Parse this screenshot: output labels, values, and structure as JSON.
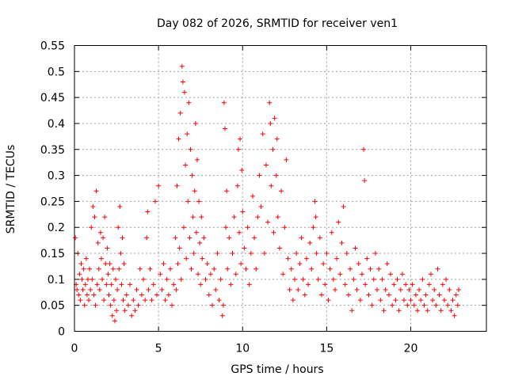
{
  "chart_data": {
    "type": "scatter",
    "title": "Day 082 of 2026, SRMTID for receiver ven1",
    "xlabel": "GPS time / hours",
    "ylabel": "SRMTID / TECUs",
    "xlim": [
      0,
      24.5
    ],
    "ylim": [
      0,
      0.55
    ],
    "xticks": [
      0,
      5,
      10,
      15,
      20
    ],
    "yticks": [
      0,
      0.05,
      0.1,
      0.15,
      0.2,
      0.25,
      0.3,
      0.35,
      0.4,
      0.45,
      0.5,
      0.55
    ],
    "xtick_labels": [
      "0",
      "5",
      "10",
      "15",
      "20"
    ],
    "ytick_labels": [
      "0",
      "0.05",
      "0.1",
      "0.15",
      "0.2",
      "0.25",
      "0.3",
      "0.35",
      "0.4",
      "0.45",
      "0.5",
      "0.55"
    ],
    "grid": true,
    "marker": "+",
    "color": "#ff0000",
    "series": [
      {
        "name": "SRMTID",
        "points": [
          [
            0.05,
            0.18
          ],
          [
            0.1,
            0.09
          ],
          [
            0.15,
            0.08
          ],
          [
            0.2,
            0.15
          ],
          [
            0.25,
            0.07
          ],
          [
            0.3,
            0.11
          ],
          [
            0.35,
            0.06
          ],
          [
            0.4,
            0.13
          ],
          [
            0.45,
            0.1
          ],
          [
            0.5,
            0.08
          ],
          [
            0.55,
            0.12
          ],
          [
            0.6,
            0.05
          ],
          [
            0.65,
            0.09
          ],
          [
            0.7,
            0.14
          ],
          [
            0.75,
            0.07
          ],
          [
            0.8,
            0.1
          ],
          [
            0.85,
            0.06
          ],
          [
            0.9,
            0.12
          ],
          [
            0.95,
            0.08
          ],
          [
            1.0,
            0.2
          ],
          [
            1.05,
            0.1
          ],
          [
            1.1,
            0.24
          ],
          [
            1.15,
            0.07
          ],
          [
            1.2,
            0.22
          ],
          [
            1.25,
            0.05
          ],
          [
            1.3,
            0.27
          ],
          [
            1.35,
            0.09
          ],
          [
            1.4,
            0.17
          ],
          [
            1.45,
            0.12
          ],
          [
            1.5,
            0.08
          ],
          [
            1.55,
            0.19
          ],
          [
            1.6,
            0.14
          ],
          [
            1.65,
            0.1
          ],
          [
            1.7,
            0.18
          ],
          [
            1.75,
            0.06
          ],
          [
            1.8,
            0.22
          ],
          [
            1.85,
            0.13
          ],
          [
            1.9,
            0.09
          ],
          [
            1.95,
            0.16
          ],
          [
            2.0,
            0.11
          ],
          [
            2.05,
            0.07
          ],
          [
            2.1,
            0.13
          ],
          [
            2.15,
            0.05
          ],
          [
            2.2,
            0.09
          ],
          [
            2.25,
            0.03
          ],
          [
            2.3,
            0.12
          ],
          [
            2.35,
            0.06
          ],
          [
            2.4,
            0.02
          ],
          [
            2.45,
            0.1
          ],
          [
            2.5,
            0.04
          ],
          [
            2.55,
            0.08
          ],
          [
            2.6,
            0.2
          ],
          [
            2.65,
            0.12
          ],
          [
            2.7,
            0.24
          ],
          [
            2.75,
            0.15
          ],
          [
            2.8,
            0.09
          ],
          [
            2.85,
            0.18
          ],
          [
            2.9,
            0.06
          ],
          [
            2.95,
            0.13
          ],
          [
            3.0,
            0.04
          ],
          [
            3.1,
            0.07
          ],
          [
            3.2,
            0.05
          ],
          [
            3.3,
            0.09
          ],
          [
            3.4,
            0.03
          ],
          [
            3.5,
            0.06
          ],
          [
            3.6,
            0.04
          ],
          [
            3.7,
            0.08
          ],
          [
            3.8,
            0.05
          ],
          [
            3.9,
            0.12
          ],
          [
            4.0,
            0.07
          ],
          [
            4.1,
            0.1
          ],
          [
            4.2,
            0.06
          ],
          [
            4.3,
            0.18
          ],
          [
            4.35,
            0.23
          ],
          [
            4.4,
            0.08
          ],
          [
            4.5,
            0.12
          ],
          [
            4.6,
            0.06
          ],
          [
            4.7,
            0.09
          ],
          [
            4.8,
            0.25
          ],
          [
            4.9,
            0.07
          ],
          [
            5.0,
            0.28
          ],
          [
            5.1,
            0.11
          ],
          [
            5.2,
            0.08
          ],
          [
            5.3,
            0.13
          ],
          [
            5.4,
            0.06
          ],
          [
            5.5,
            0.1
          ],
          [
            5.6,
            0.07
          ],
          [
            5.7,
            0.12
          ],
          [
            5.8,
            0.05
          ],
          [
            5.9,
            0.09
          ],
          [
            6.0,
            0.18
          ],
          [
            6.05,
            0.08
          ],
          [
            6.1,
            0.28
          ],
          [
            6.15,
            0.13
          ],
          [
            6.2,
            0.37
          ],
          [
            6.25,
            0.16
          ],
          [
            6.3,
            0.42
          ],
          [
            6.35,
            0.1
          ],
          [
            6.4,
            0.51
          ],
          [
            6.45,
            0.48
          ],
          [
            6.5,
            0.2
          ],
          [
            6.55,
            0.46
          ],
          [
            6.6,
            0.32
          ],
          [
            6.65,
            0.14
          ],
          [
            6.7,
            0.38
          ],
          [
            6.75,
            0.25
          ],
          [
            6.8,
            0.44
          ],
          [
            6.85,
            0.18
          ],
          [
            6.9,
            0.35
          ],
          [
            6.95,
            0.12
          ],
          [
            7.0,
            0.3
          ],
          [
            7.05,
            0.22
          ],
          [
            7.1,
            0.15
          ],
          [
            7.15,
            0.27
          ],
          [
            7.2,
            0.4
          ],
          [
            7.25,
            0.19
          ],
          [
            7.3,
            0.33
          ],
          [
            7.35,
            0.11
          ],
          [
            7.4,
            0.25
          ],
          [
            7.45,
            0.17
          ],
          [
            7.5,
            0.09
          ],
          [
            7.55,
            0.22
          ],
          [
            7.6,
            0.14
          ],
          [
            7.7,
            0.18
          ],
          [
            7.8,
            0.1
          ],
          [
            7.9,
            0.13
          ],
          [
            8.0,
            0.07
          ],
          [
            8.1,
            0.11
          ],
          [
            8.2,
            0.05
          ],
          [
            8.3,
            0.12
          ],
          [
            8.4,
            0.08
          ],
          [
            8.5,
            0.15
          ],
          [
            8.6,
            0.06
          ],
          [
            8.7,
            0.1
          ],
          [
            8.8,
            0.03
          ],
          [
            8.85,
            0.05
          ],
          [
            8.9,
            0.44
          ],
          [
            8.95,
            0.39
          ],
          [
            9.0,
            0.2
          ],
          [
            9.05,
            0.27
          ],
          [
            9.1,
            0.12
          ],
          [
            9.2,
            0.18
          ],
          [
            9.3,
            0.09
          ],
          [
            9.4,
            0.15
          ],
          [
            9.5,
            0.22
          ],
          [
            9.6,
            0.11
          ],
          [
            9.7,
            0.28
          ],
          [
            9.75,
            0.35
          ],
          [
            9.8,
            0.19
          ],
          [
            9.85,
            0.37
          ],
          [
            9.9,
            0.13
          ],
          [
            9.95,
            0.31
          ],
          [
            10.0,
            0.23
          ],
          [
            10.1,
            0.16
          ],
          [
            10.2,
            0.12
          ],
          [
            10.3,
            0.2
          ],
          [
            10.4,
            0.09
          ],
          [
            10.5,
            0.15
          ],
          [
            10.6,
            0.26
          ],
          [
            10.7,
            0.18
          ],
          [
            10.8,
            0.12
          ],
          [
            10.9,
            0.22
          ],
          [
            11.0,
            0.3
          ],
          [
            11.1,
            0.24
          ],
          [
            11.2,
            0.38
          ],
          [
            11.3,
            0.15
          ],
          [
            11.4,
            0.32
          ],
          [
            11.5,
            0.21
          ],
          [
            11.6,
            0.44
          ],
          [
            11.65,
            0.4
          ],
          [
            11.7,
            0.28
          ],
          [
            11.8,
            0.35
          ],
          [
            11.85,
            0.19
          ],
          [
            11.9,
            0.41
          ],
          [
            12.0,
            0.3
          ],
          [
            12.05,
            0.37
          ],
          [
            12.1,
            0.22
          ],
          [
            12.2,
            0.16
          ],
          [
            12.3,
            0.27
          ],
          [
            12.4,
            0.11
          ],
          [
            12.5,
            0.2
          ],
          [
            12.6,
            0.33
          ],
          [
            12.7,
            0.14
          ],
          [
            12.8,
            0.08
          ],
          [
            12.9,
            0.12
          ],
          [
            13.0,
            0.06
          ],
          [
            13.1,
            0.1
          ],
          [
            13.2,
            0.15
          ],
          [
            13.3,
            0.08
          ],
          [
            13.4,
            0.13
          ],
          [
            13.5,
            0.18
          ],
          [
            13.6,
            0.1
          ],
          [
            13.7,
            0.07
          ],
          [
            13.8,
            0.14
          ],
          [
            13.9,
            0.09
          ],
          [
            14.0,
            0.17
          ],
          [
            14.1,
            0.12
          ],
          [
            14.2,
            0.2
          ],
          [
            14.3,
            0.25
          ],
          [
            14.35,
            0.22
          ],
          [
            14.4,
            0.15
          ],
          [
            14.5,
            0.1
          ],
          [
            14.6,
            0.18
          ],
          [
            14.7,
            0.07
          ],
          [
            14.8,
            0.13
          ],
          [
            14.9,
            0.09
          ],
          [
            15.0,
            0.15
          ],
          [
            15.1,
            0.06
          ],
          [
            15.2,
            0.12
          ],
          [
            15.3,
            0.19
          ],
          [
            15.4,
            0.1
          ],
          [
            15.5,
            0.08
          ],
          [
            15.6,
            0.14
          ],
          [
            15.7,
            0.21
          ],
          [
            15.8,
            0.11
          ],
          [
            15.9,
            0.17
          ],
          [
            16.0,
            0.24
          ],
          [
            16.1,
            0.09
          ],
          [
            16.2,
            0.15
          ],
          [
            16.3,
            0.07
          ],
          [
            16.4,
            0.12
          ],
          [
            16.5,
            0.04
          ],
          [
            16.6,
            0.1
          ],
          [
            16.7,
            0.16
          ],
          [
            16.8,
            0.08
          ],
          [
            16.9,
            0.13
          ],
          [
            17.0,
            0.06
          ],
          [
            17.1,
            0.11
          ],
          [
            17.2,
            0.35
          ],
          [
            17.25,
            0.29
          ],
          [
            17.3,
            0.09
          ],
          [
            17.4,
            0.14
          ],
          [
            17.5,
            0.07
          ],
          [
            17.6,
            0.12
          ],
          [
            17.7,
            0.05
          ],
          [
            17.8,
            0.1
          ],
          [
            17.9,
            0.15
          ],
          [
            18.0,
            0.08
          ],
          [
            18.1,
            0.12
          ],
          [
            18.2,
            0.06
          ],
          [
            18.3,
            0.1
          ],
          [
            18.4,
            0.04
          ],
          [
            18.5,
            0.08
          ],
          [
            18.6,
            0.13
          ],
          [
            18.7,
            0.07
          ],
          [
            18.8,
            0.11
          ],
          [
            18.9,
            0.05
          ],
          [
            19.0,
            0.09
          ],
          [
            19.1,
            0.06
          ],
          [
            19.2,
            0.1
          ],
          [
            19.3,
            0.04
          ],
          [
            19.4,
            0.08
          ],
          [
            19.5,
            0.11
          ],
          [
            19.6,
            0.06
          ],
          [
            19.7,
            0.09
          ],
          [
            19.8,
            0.05
          ],
          [
            19.9,
            0.08
          ],
          [
            20.0,
            0.06
          ],
          [
            20.1,
            0.09
          ],
          [
            20.2,
            0.05
          ],
          [
            20.3,
            0.07
          ],
          [
            20.4,
            0.04
          ],
          [
            20.5,
            0.08
          ],
          [
            20.6,
            0.06
          ],
          [
            20.7,
            0.1
          ],
          [
            20.8,
            0.05
          ],
          [
            20.9,
            0.07
          ],
          [
            21.0,
            0.04
          ],
          [
            21.1,
            0.09
          ],
          [
            21.2,
            0.11
          ],
          [
            21.3,
            0.06
          ],
          [
            21.4,
            0.08
          ],
          [
            21.5,
            0.05
          ],
          [
            21.6,
            0.12
          ],
          [
            21.7,
            0.07
          ],
          [
            21.8,
            0.04
          ],
          [
            21.9,
            0.09
          ],
          [
            22.0,
            0.06
          ],
          [
            22.1,
            0.1
          ],
          [
            22.2,
            0.05
          ],
          [
            22.3,
            0.08
          ],
          [
            22.4,
            0.04
          ],
          [
            22.5,
            0.06
          ],
          [
            22.6,
            0.03
          ],
          [
            22.7,
            0.07
          ],
          [
            22.8,
            0.05
          ],
          [
            22.85,
            0.08
          ]
        ]
      }
    ]
  }
}
